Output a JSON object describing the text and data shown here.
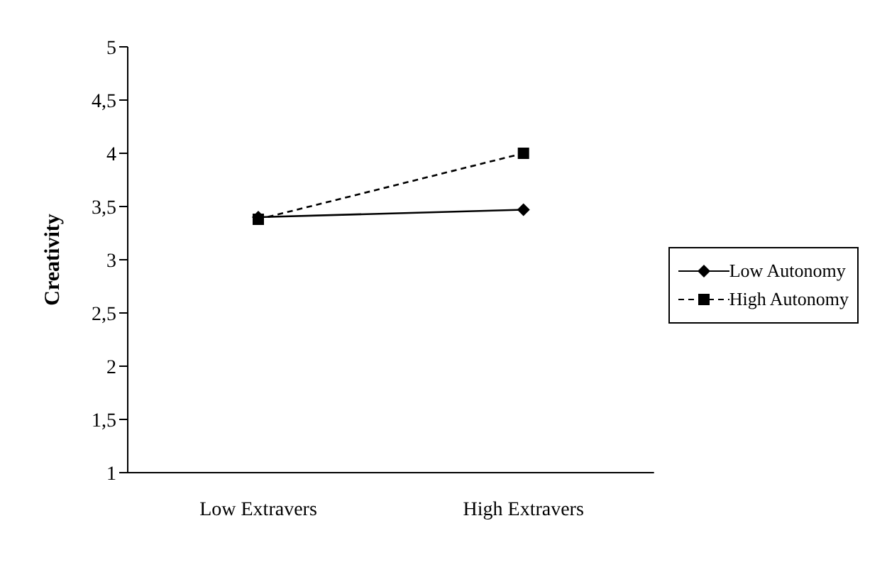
{
  "chart_data": {
    "type": "line",
    "ylabel": "Creativity",
    "categories": [
      "Low Extravers",
      "High Extravers"
    ],
    "series": [
      {
        "name": "Low Autonomy",
        "color": "#000000",
        "values": [
          3.4,
          3.47
        ],
        "marker": "diamond",
        "line_style": "solid"
      },
      {
        "name": "High Autonomy",
        "color": "#000000",
        "values": [
          3.38,
          4.0
        ],
        "marker": "square",
        "line_style": "dashed"
      }
    ],
    "ylim": [
      1,
      5
    ],
    "yticks": [
      1,
      {
        "value": 1.5,
        "label": "1,5"
      },
      2,
      {
        "value": 2.5,
        "label": "2,5"
      },
      3,
      {
        "value": 3.5,
        "label": "3,5"
      },
      4,
      {
        "value": 4.5,
        "label": "4,5"
      },
      5
    ],
    "grid": false,
    "legend": "right"
  }
}
